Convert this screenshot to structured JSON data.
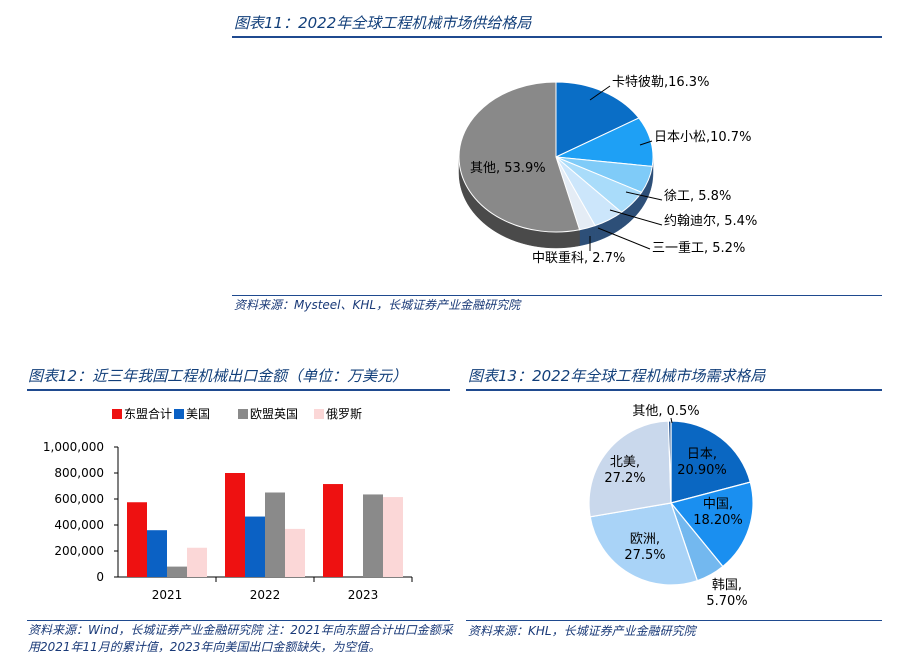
{
  "fig11": {
    "title": "图表11：2022年全球工程机械市场供给格局",
    "source": "资料来源：Mysteel、KHL，长城证券产业金融研究院"
  },
  "fig12": {
    "title": "图表12：近三年我国工程机械出口金额（单位：万美元）",
    "source": "资料来源：Wind，长城证券产业金融研究院 注：2021年向东盟合计出口金额采用2021年11月的累计值，2023年向美国出口金额缺失，为空值。"
  },
  "fig13": {
    "title": "图表13：2022年全球工程机械市场需求格局",
    "source": "资料来源：KHL，长城证券产业金融研究院"
  },
  "chart_data": [
    {
      "type": "pie",
      "style": "3d",
      "slices": [
        {
          "label": "卡特彼勒,16.3%",
          "value": 16.3,
          "color": "#0a6ec6"
        },
        {
          "label": "日本小松,10.7%",
          "value": 10.7,
          "color": "#1ea0f5"
        },
        {
          "label": "徐工, 5.8%",
          "value": 5.8,
          "color": "#7fcbf8"
        },
        {
          "label": "约翰迪尔, 5.4%",
          "value": 5.4,
          "color": "#a9dcfa"
        },
        {
          "label": "三一重工, 5.2%",
          "value": 5.2,
          "color": "#cce6fb"
        },
        {
          "label": "中联重科, 2.7%",
          "value": 2.7,
          "color": "#e4ecf5"
        },
        {
          "label": "其他, 53.9%",
          "value": 53.9,
          "color": "#898989"
        }
      ]
    },
    {
      "type": "bar",
      "categories": [
        "2021",
        "2022",
        "2023"
      ],
      "series": [
        {
          "name": "东盟合计",
          "color": "#ee1111",
          "values": [
            575000,
            800000,
            715000
          ]
        },
        {
          "name": "美国",
          "color": "#0b61c4",
          "values": [
            360000,
            465000,
            null
          ]
        },
        {
          "name": "欧盟英国",
          "color": "#8a8a8a",
          "values": [
            80000,
            650000,
            635000
          ]
        },
        {
          "name": "俄罗斯",
          "color": "#fbd7d7",
          "values": [
            225000,
            370000,
            615000
          ]
        }
      ],
      "ylim": [
        0,
        1000000
      ],
      "yticks": [
        "0",
        "200,000",
        "400,000",
        "600,000",
        "800,000",
        "1,000,000"
      ],
      "grid": false,
      "legend": "top"
    },
    {
      "type": "pie",
      "slices": [
        {
          "label": "日本, 20.90%",
          "label_lines": [
            "日本,",
            "20.90%"
          ],
          "value": 20.9,
          "color": "#0a67c2"
        },
        {
          "label": "中国, 18.20%",
          "label_lines": [
            "中国,",
            "18.20%"
          ],
          "value": 18.2,
          "color": "#1a8ff0"
        },
        {
          "label": "韩国, 5.70%",
          "label_lines": [
            "韩国,",
            "5.70%"
          ],
          "value": 5.7,
          "color": "#73b8ef"
        },
        {
          "label": "欧洲, 27.5%",
          "label_lines": [
            "欧洲,",
            "27.5%"
          ],
          "value": 27.5,
          "color": "#a9d3f7"
        },
        {
          "label": "北美, 27.2%",
          "label_lines": [
            "北美,",
            "27.2%"
          ],
          "value": 27.2,
          "color": "#c9d8ec"
        },
        {
          "label": "其他, 0.5%",
          "label_lines": [
            "其他, 0.5%"
          ],
          "value": 0.5,
          "color": "#0a3d80"
        }
      ]
    }
  ]
}
